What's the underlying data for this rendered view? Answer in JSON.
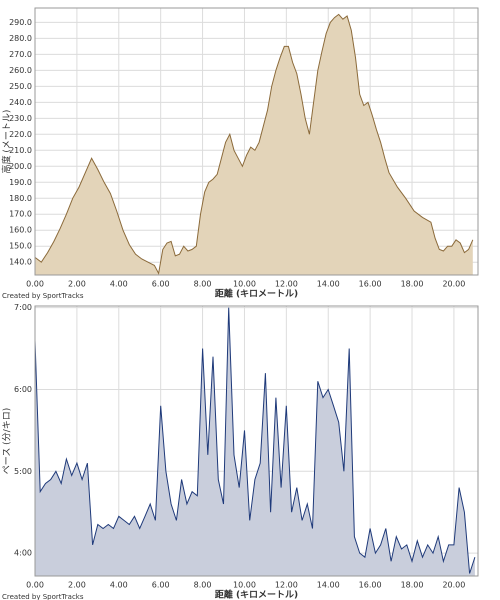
{
  "chart_data": [
    {
      "type": "area",
      "ylabel": "高度 (メートル)",
      "xlabel": "距離 (キロメートル)",
      "credit": "Created by SportTracks",
      "color": "#e3d4b9",
      "line_color": "#8b6a3a",
      "label_color": "#8b4a2a",
      "grid": true,
      "xlim": [
        0,
        21.15
      ],
      "ylim": [
        132,
        299
      ],
      "xticks": [
        {
          "value": 0,
          "label": "0.00"
        },
        {
          "value": 2,
          "label": "2.00"
        },
        {
          "value": 4,
          "label": "4.00"
        },
        {
          "value": 6,
          "label": "6.00"
        },
        {
          "value": 8,
          "label": "8.00"
        },
        {
          "value": 10,
          "label": "10.00"
        },
        {
          "value": 12,
          "label": "12.00"
        },
        {
          "value": 14,
          "label": "14.00"
        },
        {
          "value": 16,
          "label": "16.00"
        },
        {
          "value": 18,
          "label": "18.00"
        },
        {
          "value": 20,
          "label": "20.00"
        }
      ],
      "yticks": [
        {
          "value": 140,
          "label": "140.0"
        },
        {
          "value": 150,
          "label": "150.0"
        },
        {
          "value": 160,
          "label": "160.0"
        },
        {
          "value": 170,
          "label": "170.0"
        },
        {
          "value": 180,
          "label": "180.0"
        },
        {
          "value": 190,
          "label": "190.0"
        },
        {
          "value": 200,
          "label": "200.0"
        },
        {
          "value": 210,
          "label": "210.0"
        },
        {
          "value": 220,
          "label": "220.0"
        },
        {
          "value": 230,
          "label": "230.0"
        },
        {
          "value": 240,
          "label": "240.0"
        },
        {
          "value": 250,
          "label": "250.0"
        },
        {
          "value": 260,
          "label": "260.0"
        },
        {
          "value": 270,
          "label": "270.0"
        },
        {
          "value": 280,
          "label": "280.0"
        },
        {
          "value": 290,
          "label": "290.0"
        }
      ],
      "x": [
        0,
        0.3,
        0.6,
        0.9,
        1.2,
        1.5,
        1.8,
        2.1,
        2.4,
        2.7,
        3.0,
        3.3,
        3.6,
        3.9,
        4.2,
        4.5,
        4.8,
        5.1,
        5.4,
        5.7,
        5.9,
        6.1,
        6.3,
        6.5,
        6.7,
        6.9,
        7.1,
        7.3,
        7.5,
        7.7,
        7.9,
        8.1,
        8.3,
        8.5,
        8.7,
        8.9,
        9.1,
        9.3,
        9.5,
        9.7,
        9.9,
        10.1,
        10.3,
        10.5,
        10.7,
        10.9,
        11.1,
        11.3,
        11.5,
        11.7,
        11.9,
        12.1,
        12.3,
        12.5,
        12.7,
        12.9,
        13.1,
        13.3,
        13.5,
        13.7,
        13.9,
        14.1,
        14.3,
        14.5,
        14.7,
        14.9,
        15.1,
        15.3,
        15.5,
        15.7,
        15.9,
        16.1,
        16.3,
        16.5,
        16.7,
        16.9,
        17.3,
        17.7,
        18.1,
        18.5,
        18.9,
        19.1,
        19.3,
        19.5,
        19.7,
        19.9,
        20.1,
        20.3,
        20.5,
        20.7,
        20.9
      ],
      "values": [
        143,
        140,
        146,
        153,
        161,
        170,
        180,
        187,
        196,
        205,
        198,
        190,
        183,
        172,
        160,
        151,
        145,
        142,
        140,
        138,
        133,
        148,
        152,
        153,
        144,
        145,
        150,
        147,
        148,
        150,
        170,
        184,
        190,
        192,
        195,
        205,
        215,
        220,
        210,
        205,
        200,
        207,
        212,
        210,
        215,
        225,
        235,
        250,
        260,
        268,
        275,
        275,
        265,
        258,
        245,
        230,
        220,
        240,
        260,
        272,
        283,
        290,
        293,
        295,
        292,
        294,
        285,
        268,
        245,
        238,
        240,
        232,
        223,
        215,
        205,
        196,
        187,
        180,
        172,
        168,
        165,
        155,
        148,
        147,
        150,
        150,
        154,
        152,
        146,
        148,
        154
      ]
    },
    {
      "type": "area",
      "ylabel": "ペース (分/キロ)",
      "xlabel": "距離 (キロメートル)",
      "credit": "Created by SportTracks",
      "color": "#c9cedc",
      "line_color": "#1f3a7a",
      "label_color": "#2f4fa0",
      "grid": true,
      "xlim": [
        0,
        21.15
      ],
      "ylim": [
        3.72,
        7.02
      ],
      "xticks": [
        {
          "value": 0,
          "label": "0.00"
        },
        {
          "value": 2,
          "label": "2.00"
        },
        {
          "value": 4,
          "label": "4.00"
        },
        {
          "value": 6,
          "label": "6.00"
        },
        {
          "value": 8,
          "label": "8.00"
        },
        {
          "value": 10,
          "label": "10.00"
        },
        {
          "value": 12,
          "label": "12.00"
        },
        {
          "value": 14,
          "label": "14.00"
        },
        {
          "value": 16,
          "label": "16.00"
        },
        {
          "value": 18,
          "label": "18.00"
        },
        {
          "value": 20,
          "label": "20.00"
        }
      ],
      "yticks": [
        {
          "value": 4,
          "label": "4:00"
        },
        {
          "value": 5,
          "label": "5:00"
        },
        {
          "value": 6,
          "label": "6:00"
        },
        {
          "value": 7,
          "label": "7:00"
        }
      ],
      "x": [
        0,
        0.25,
        0.5,
        0.75,
        1.0,
        1.25,
        1.5,
        1.75,
        2.0,
        2.25,
        2.5,
        2.75,
        3.0,
        3.25,
        3.5,
        3.75,
        4.0,
        4.25,
        4.5,
        4.75,
        5.0,
        5.25,
        5.5,
        5.75,
        6.0,
        6.25,
        6.5,
        6.75,
        7.0,
        7.25,
        7.5,
        7.75,
        8.0,
        8.25,
        8.5,
        8.75,
        9.0,
        9.25,
        9.5,
        9.75,
        10.0,
        10.25,
        10.5,
        10.75,
        11.0,
        11.25,
        11.5,
        11.75,
        12.0,
        12.25,
        12.5,
        12.75,
        13.0,
        13.25,
        13.5,
        13.75,
        14.0,
        14.25,
        14.5,
        14.75,
        15.0,
        15.25,
        15.5,
        15.75,
        16.0,
        16.25,
        16.5,
        16.75,
        17.0,
        17.25,
        17.5,
        17.75,
        18.0,
        18.25,
        18.5,
        18.75,
        19.0,
        19.25,
        19.5,
        19.75,
        20.0,
        20.25,
        20.5,
        20.75,
        21.0
      ],
      "values": [
        6.6,
        4.75,
        4.85,
        4.9,
        5.0,
        4.85,
        5.15,
        4.95,
        5.1,
        4.9,
        5.1,
        4.1,
        4.35,
        4.3,
        4.35,
        4.3,
        4.45,
        4.4,
        4.35,
        4.45,
        4.3,
        4.45,
        4.6,
        4.4,
        5.8,
        5.0,
        4.6,
        4.4,
        4.9,
        4.6,
        4.75,
        4.7,
        6.5,
        5.2,
        6.4,
        4.9,
        4.6,
        7.0,
        5.2,
        4.8,
        5.5,
        4.4,
        4.9,
        5.1,
        6.2,
        4.5,
        5.9,
        4.8,
        5.8,
        4.5,
        4.8,
        4.4,
        4.6,
        4.3,
        6.1,
        5.9,
        6.0,
        5.8,
        5.6,
        5.0,
        6.5,
        4.2,
        4.0,
        3.95,
        4.3,
        4.0,
        4.1,
        4.3,
        3.9,
        4.2,
        4.05,
        4.1,
        3.9,
        4.15,
        3.95,
        4.1,
        4.0,
        4.2,
        3.9,
        4.1,
        4.1,
        4.8,
        4.5,
        3.75,
        3.95
      ]
    }
  ]
}
